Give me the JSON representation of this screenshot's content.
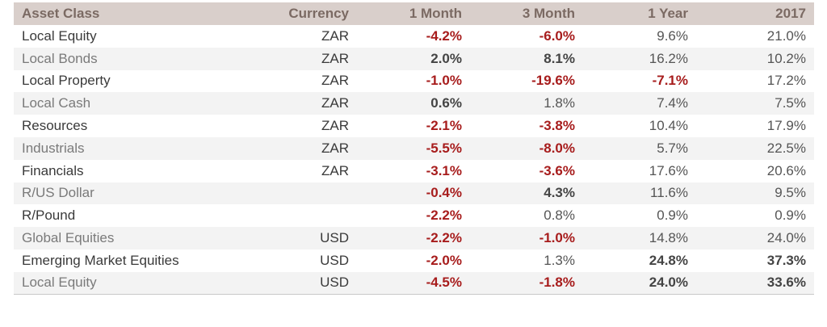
{
  "headers": [
    "Asset Class",
    "Currency",
    "1 Month",
    "3 Month",
    "1 Year",
    "2017"
  ],
  "rows": [
    {
      "name": "Local Equity",
      "currency": "ZAR",
      "m1": "-4.2%",
      "m3": "-6.0%",
      "y1": "9.6%",
      "ytd": "21.0%",
      "styles": [
        "neg",
        "neg",
        "plain",
        "plain"
      ]
    },
    {
      "name": "Local Bonds",
      "currency": "ZAR",
      "m1": "2.0%",
      "m3": "8.1%",
      "y1": "16.2%",
      "ytd": "10.2%",
      "styles": [
        "pos-b",
        "pos-b",
        "plain",
        "plain"
      ]
    },
    {
      "name": "Local Property",
      "currency": "ZAR",
      "m1": "-1.0%",
      "m3": "-19.6%",
      "y1": "-7.1%",
      "ytd": "17.2%",
      "styles": [
        "neg",
        "neg",
        "neg",
        "plain"
      ]
    },
    {
      "name": "Local Cash",
      "currency": "ZAR",
      "m1": "0.6%",
      "m3": "1.8%",
      "y1": "7.4%",
      "ytd": "7.5%",
      "styles": [
        "pos-b",
        "plain",
        "plain",
        "plain"
      ]
    },
    {
      "name": "Resources",
      "currency": "ZAR",
      "m1": "-2.1%",
      "m3": "-3.8%",
      "y1": "10.4%",
      "ytd": "17.9%",
      "styles": [
        "neg",
        "neg",
        "plain",
        "plain"
      ]
    },
    {
      "name": "Industrials",
      "currency": "ZAR",
      "m1": "-5.5%",
      "m3": "-8.0%",
      "y1": "5.7%",
      "ytd": "22.5%",
      "styles": [
        "neg",
        "neg",
        "plain",
        "plain"
      ]
    },
    {
      "name": "Financials",
      "currency": "ZAR",
      "m1": "-3.1%",
      "m3": "-3.6%",
      "y1": "17.6%",
      "ytd": "20.6%",
      "styles": [
        "neg",
        "neg",
        "plain",
        "plain"
      ]
    },
    {
      "name": "R/US Dollar",
      "currency": "",
      "m1": "-0.4%",
      "m3": "4.3%",
      "y1": "11.6%",
      "ytd": "9.5%",
      "styles": [
        "neg",
        "pos-b",
        "plain",
        "plain"
      ]
    },
    {
      "name": "R/Pound",
      "currency": "",
      "m1": "-2.2%",
      "m3": "0.8%",
      "y1": "0.9%",
      "ytd": "0.9%",
      "styles": [
        "neg",
        "plain",
        "plain",
        "plain"
      ]
    },
    {
      "name": "Global Equities",
      "currency": "USD",
      "m1": "-2.2%",
      "m3": "-1.0%",
      "y1": "14.8%",
      "ytd": "24.0%",
      "styles": [
        "neg",
        "neg",
        "plain",
        "plain"
      ]
    },
    {
      "name": "Emerging Market Equities",
      "currency": "USD",
      "m1": "-2.0%",
      "m3": "1.3%",
      "y1": "24.8%",
      "ytd": "37.3%",
      "styles": [
        "neg",
        "plain",
        "pos-b",
        "pos-b"
      ]
    },
    {
      "name": "Local Equity",
      "currency": "USD",
      "m1": "-4.5%",
      "m3": "-1.8%",
      "y1": "24.0%",
      "ytd": "33.6%",
      "styles": [
        "neg",
        "neg",
        "pos-b",
        "pos-b"
      ]
    }
  ],
  "colors": {
    "header_bg": "#d9cfcb",
    "header_text": "#7b6a63",
    "negative": "#a71c1c",
    "stripe": "#f3f3f3"
  }
}
